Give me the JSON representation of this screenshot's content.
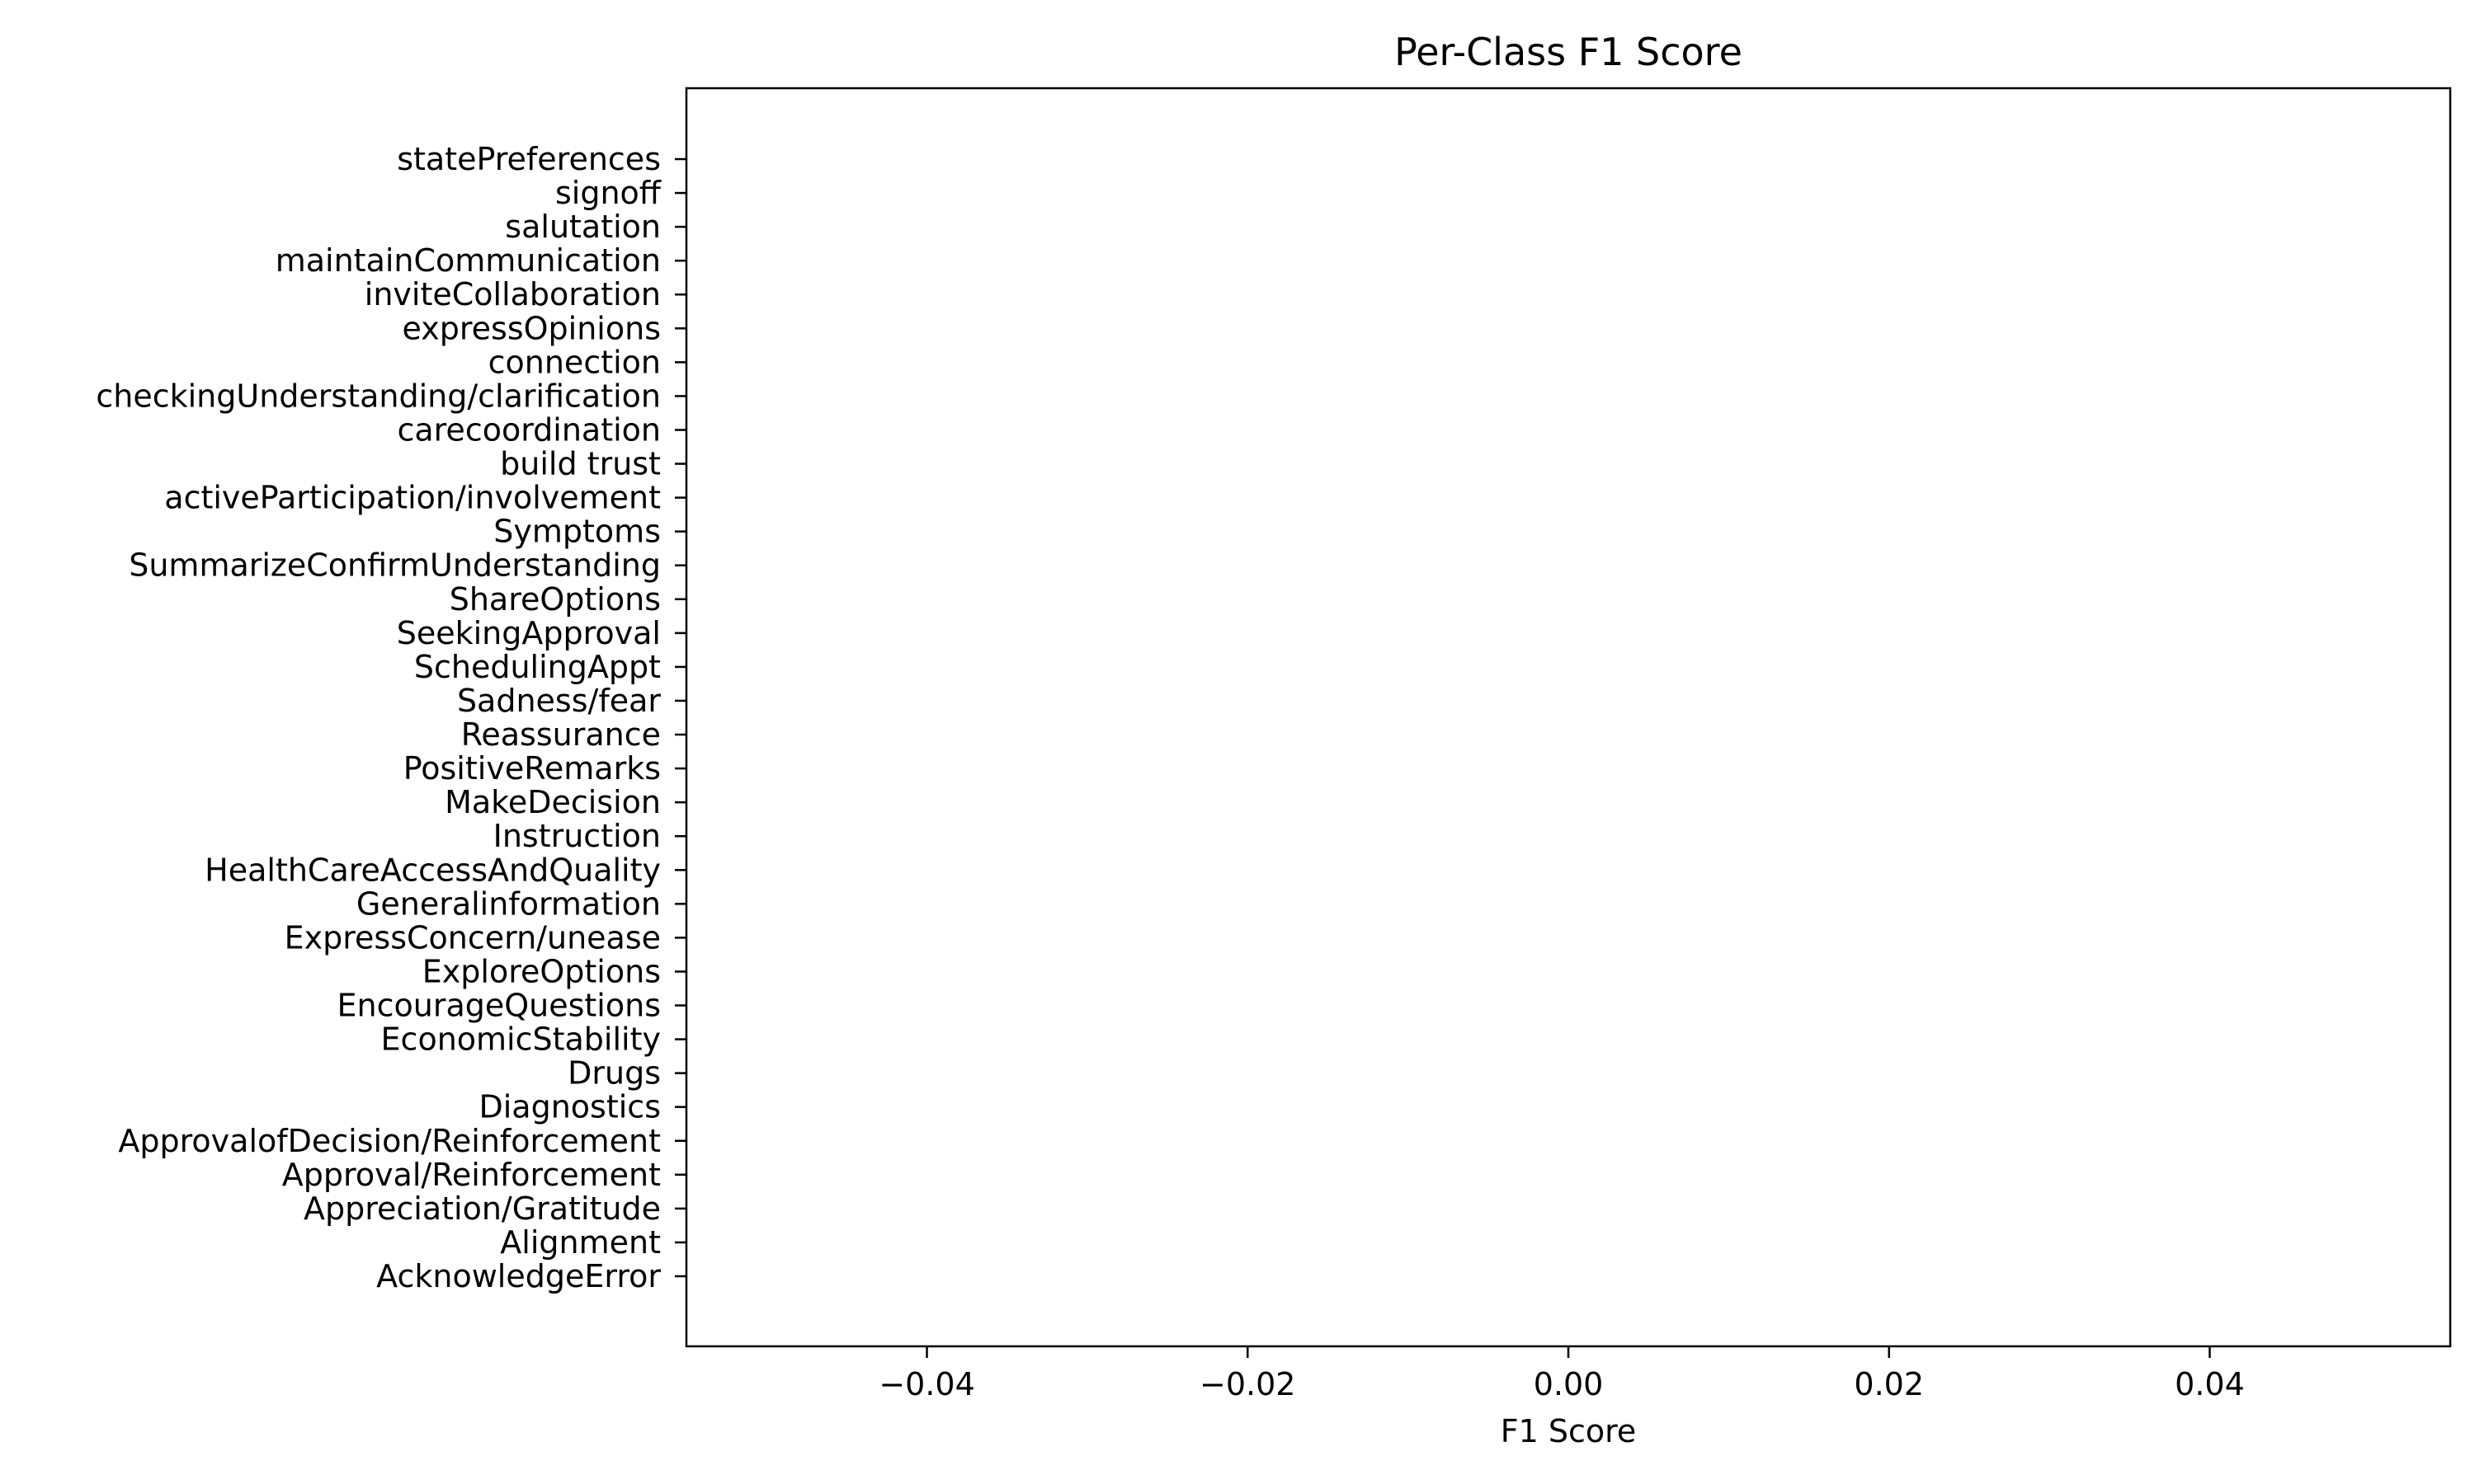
{
  "chart_data": {
    "type": "bar",
    "orientation": "horizontal",
    "title": "Per-Class F1 Score",
    "xlabel": "F1 Score",
    "ylabel": "",
    "xlim": [
      -0.055,
      0.055
    ],
    "x_ticks": [
      -0.04,
      -0.02,
      0.0,
      0.02,
      0.04
    ],
    "x_tick_labels": [
      "−0.04",
      "−0.02",
      "0.00",
      "0.02",
      "0.04"
    ],
    "grid": false,
    "legend": "none",
    "bar_color": "#1f77b4",
    "categories": [
      "AcknowledgeError",
      "Alignment",
      "Appreciation/Gratitude",
      "Approval/Reinforcement",
      "ApprovalofDecision/Reinforcement",
      "Diagnostics",
      "Drugs",
      "EconomicStability",
      "EncourageQuestions",
      "ExploreOptions",
      "ExpressConcern/unease",
      "Generalinformation",
      "HealthCareAccessAndQuality",
      "Instruction",
      "MakeDecision",
      "PositiveRemarks",
      "Reassurance",
      "Sadness/fear",
      "SchedulingAppt",
      "SeekingApproval",
      "ShareOptions",
      "SummarizeConfirmUnderstanding",
      "Symptoms",
      "activeParticipation/involvement",
      "build trust",
      "carecoordination",
      "checkingUnderstanding/clarification",
      "connection",
      "expressOpinions",
      "inviteCollaboration",
      "maintainCommunication",
      "salutation",
      "signoff",
      "statePreferences"
    ],
    "values": [
      0,
      0,
      0,
      0,
      0,
      0,
      0,
      0,
      0,
      0,
      0,
      0,
      0,
      0,
      0,
      0,
      0,
      0,
      0,
      0,
      0,
      0,
      0,
      0,
      0,
      0,
      0,
      0,
      0,
      0,
      0,
      0,
      0,
      0
    ]
  }
}
